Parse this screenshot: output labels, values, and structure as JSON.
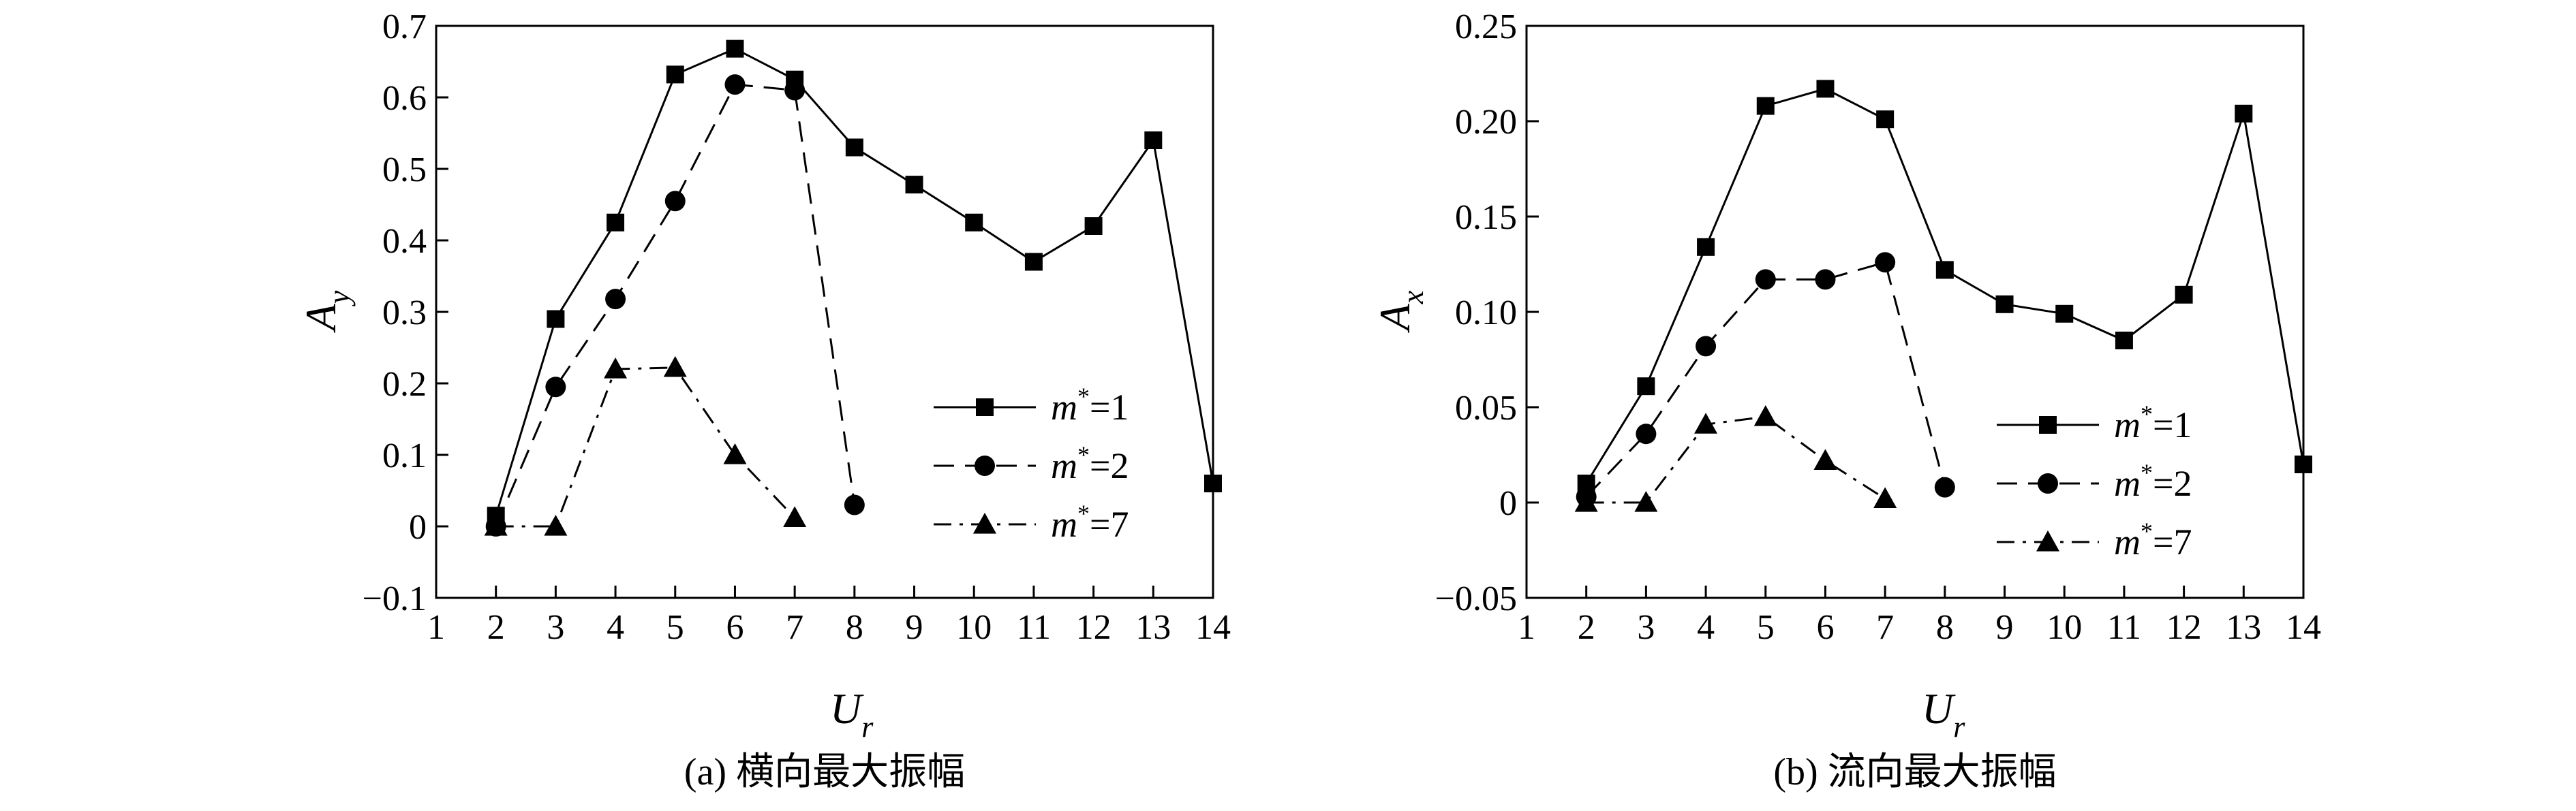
{
  "chart_data": [
    {
      "type": "line",
      "caption": "(a) 横向最大振幅",
      "xlabel": {
        "main": "U",
        "sub": "r"
      },
      "ylabel": {
        "main": "A",
        "sub": "y"
      },
      "xlim": [
        1,
        14
      ],
      "ylim": [
        -0.1,
        0.7
      ],
      "xticks": [
        1,
        2,
        3,
        4,
        5,
        6,
        7,
        8,
        9,
        10,
        11,
        12,
        13,
        14
      ],
      "yticks": [
        -0.1,
        0,
        0.1,
        0.2,
        0.3,
        0.4,
        0.5,
        0.6,
        0.7
      ],
      "ytick_labels": [
        "−0.1",
        "0",
        "0.1",
        "0.2",
        "0.3",
        "0.4",
        "0.5",
        "0.6",
        "0.7"
      ],
      "grid": false,
      "legend_position": "lower-right",
      "series": [
        {
          "name": "m*=1",
          "legend": {
            "var": "m",
            "sup": "*",
            "rest": "=1"
          },
          "marker": "square",
          "line": "solid",
          "x": [
            2,
            3,
            4,
            5,
            6,
            7,
            8,
            9,
            10,
            11,
            12,
            13,
            14
          ],
          "y": [
            0.015,
            0.29,
            0.425,
            0.632,
            0.668,
            0.625,
            0.53,
            0.478,
            0.425,
            0.37,
            0.42,
            0.54,
            0.06
          ]
        },
        {
          "name": "m*=2",
          "legend": {
            "var": "m",
            "sup": "*",
            "rest": "=2"
          },
          "marker": "circle",
          "line": "dashed",
          "x": [
            2,
            3,
            4,
            5,
            6,
            7,
            8
          ],
          "y": [
            0.0,
            0.195,
            0.318,
            0.455,
            0.618,
            0.61,
            0.03
          ]
        },
        {
          "name": "m*=7",
          "legend": {
            "var": "m",
            "sup": "*",
            "rest": "=7"
          },
          "marker": "triangle",
          "line": "dashdot",
          "x": [
            2,
            3,
            4,
            5,
            6,
            7
          ],
          "y": [
            0.0,
            0.0,
            0.22,
            0.222,
            0.1,
            0.012
          ]
        }
      ]
    },
    {
      "type": "line",
      "caption": "(b) 流向最大振幅",
      "xlabel": {
        "main": "U",
        "sub": "r"
      },
      "ylabel": {
        "main": "A",
        "sub": "x"
      },
      "xlim": [
        1,
        14
      ],
      "ylim": [
        -0.05,
        0.25
      ],
      "xticks": [
        1,
        2,
        3,
        4,
        5,
        6,
        7,
        8,
        9,
        10,
        11,
        12,
        13,
        14
      ],
      "yticks": [
        -0.05,
        0,
        0.05,
        0.1,
        0.15,
        0.2,
        0.25
      ],
      "ytick_labels": [
        "−0.05",
        "0",
        "0.05",
        "0.10",
        "0.15",
        "0.20",
        "0.25"
      ],
      "grid": false,
      "legend_position": "lower-right",
      "series": [
        {
          "name": "m*=1",
          "legend": {
            "var": "m",
            "sup": "*",
            "rest": "=1"
          },
          "marker": "square",
          "line": "solid",
          "x": [
            2,
            3,
            4,
            5,
            6,
            7,
            8,
            9,
            10,
            11,
            12,
            13,
            14
          ],
          "y": [
            0.01,
            0.061,
            0.134,
            0.208,
            0.217,
            0.201,
            0.122,
            0.104,
            0.099,
            0.085,
            0.109,
            0.204,
            0.02
          ]
        },
        {
          "name": "m*=2",
          "legend": {
            "var": "m",
            "sup": "*",
            "rest": "=2"
          },
          "marker": "circle",
          "line": "dashed",
          "x": [
            2,
            3,
            4,
            5,
            6,
            7,
            8
          ],
          "y": [
            0.003,
            0.036,
            0.082,
            0.117,
            0.117,
            0.126,
            0.008
          ]
        },
        {
          "name": "m*=7",
          "legend": {
            "var": "m",
            "sup": "*",
            "rest": "=7"
          },
          "marker": "triangle",
          "line": "dashdot",
          "x": [
            2,
            3,
            4,
            5,
            6,
            7
          ],
          "y": [
            0.0,
            0.0,
            0.041,
            0.045,
            0.022,
            0.002
          ]
        }
      ]
    }
  ]
}
